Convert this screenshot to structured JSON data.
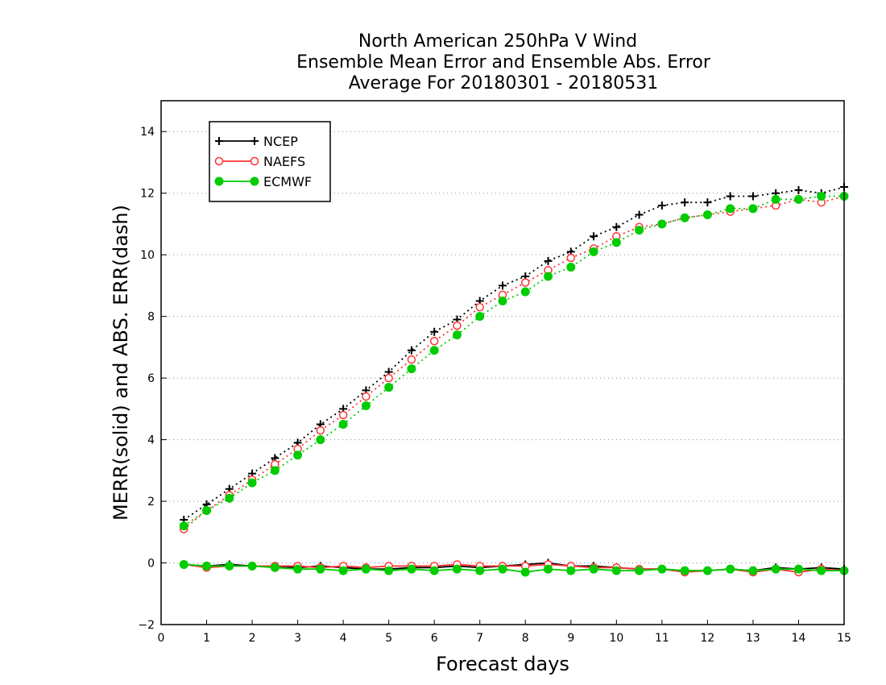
{
  "chart_data": {
    "type": "line",
    "title_lines": [
      "North American 250hPa V Wind",
      "Ensemble Mean Error and Ensemble Abs. Error",
      "Average For 20180301 - 20180531"
    ],
    "xlabel": "Forecast days",
    "ylabel": "MERR(solid) and ABS. ERR(dash)",
    "xlim": [
      0,
      15
    ],
    "ylim": [
      -2,
      15
    ],
    "x_ticks": [
      0,
      1,
      2,
      3,
      4,
      5,
      6,
      7,
      8,
      9,
      10,
      11,
      12,
      13,
      14,
      15
    ],
    "y_ticks": [
      -2,
      0,
      2,
      4,
      6,
      8,
      10,
      12,
      14
    ],
    "grid": "horizontal dotted",
    "legend_position": "top-left",
    "x": [
      0.5,
      1,
      1.5,
      2,
      2.5,
      3,
      3.5,
      4,
      4.5,
      5,
      5.5,
      6,
      6.5,
      7,
      7.5,
      8,
      8.5,
      9,
      9.5,
      10,
      10.5,
      11,
      11.5,
      12,
      12.5,
      13,
      13.5,
      14,
      14.5,
      15
    ],
    "series": [
      {
        "name": "NCEP",
        "color": "#000000",
        "marker": "plus",
        "abs_err": [
          1.4,
          1.9,
          2.4,
          2.9,
          3.4,
          3.9,
          4.5,
          5.0,
          5.6,
          6.2,
          6.9,
          7.5,
          7.9,
          8.5,
          9.0,
          9.3,
          9.8,
          10.1,
          10.6,
          10.9,
          11.3,
          11.6,
          11.7,
          11.7,
          11.9,
          11.9,
          12.0,
          12.1,
          12.0,
          12.2
        ],
        "mean_err": [
          -0.05,
          -0.1,
          -0.05,
          -0.1,
          -0.1,
          -0.15,
          -0.1,
          -0.15,
          -0.2,
          -0.2,
          -0.15,
          -0.15,
          -0.1,
          -0.15,
          -0.1,
          -0.05,
          0.0,
          -0.1,
          -0.1,
          -0.15,
          -0.2,
          -0.2,
          -0.25,
          -0.25,
          -0.2,
          -0.25,
          -0.15,
          -0.2,
          -0.15,
          -0.2
        ]
      },
      {
        "name": "NAEFS",
        "color": "#ff3333",
        "marker": "circle-open",
        "abs_err": [
          1.1,
          1.7,
          2.2,
          2.7,
          3.2,
          3.7,
          4.3,
          4.8,
          5.4,
          6.0,
          6.6,
          7.2,
          7.7,
          8.3,
          8.7,
          9.1,
          9.5,
          9.9,
          10.2,
          10.6,
          10.9,
          11.0,
          11.2,
          11.3,
          11.4,
          11.5,
          11.6,
          11.8,
          11.7,
          11.9
        ],
        "mean_err": [
          -0.05,
          -0.15,
          -0.1,
          -0.1,
          -0.1,
          -0.1,
          -0.15,
          -0.1,
          -0.15,
          -0.1,
          -0.1,
          -0.1,
          -0.05,
          -0.1,
          -0.1,
          -0.1,
          -0.05,
          -0.1,
          -0.15,
          -0.15,
          -0.2,
          -0.2,
          -0.3,
          -0.25,
          -0.2,
          -0.3,
          -0.2,
          -0.3,
          -0.2,
          -0.25
        ]
      },
      {
        "name": "ECMWF",
        "color": "#00cc00",
        "marker": "circle-filled",
        "abs_err": [
          1.2,
          1.7,
          2.1,
          2.6,
          3.0,
          3.5,
          4.0,
          4.5,
          5.1,
          5.7,
          6.3,
          6.9,
          7.4,
          8.0,
          8.5,
          8.8,
          9.3,
          9.6,
          10.1,
          10.4,
          10.8,
          11.0,
          11.2,
          11.3,
          11.5,
          11.5,
          11.8,
          11.8,
          11.9,
          11.9
        ],
        "mean_err": [
          -0.05,
          -0.1,
          -0.1,
          -0.1,
          -0.15,
          -0.2,
          -0.2,
          -0.25,
          -0.2,
          -0.25,
          -0.2,
          -0.25,
          -0.2,
          -0.25,
          -0.2,
          -0.3,
          -0.2,
          -0.25,
          -0.2,
          -0.25,
          -0.25,
          -0.2,
          -0.25,
          -0.25,
          -0.2,
          -0.25,
          -0.2,
          -0.2,
          -0.25,
          -0.25
        ]
      }
    ]
  }
}
